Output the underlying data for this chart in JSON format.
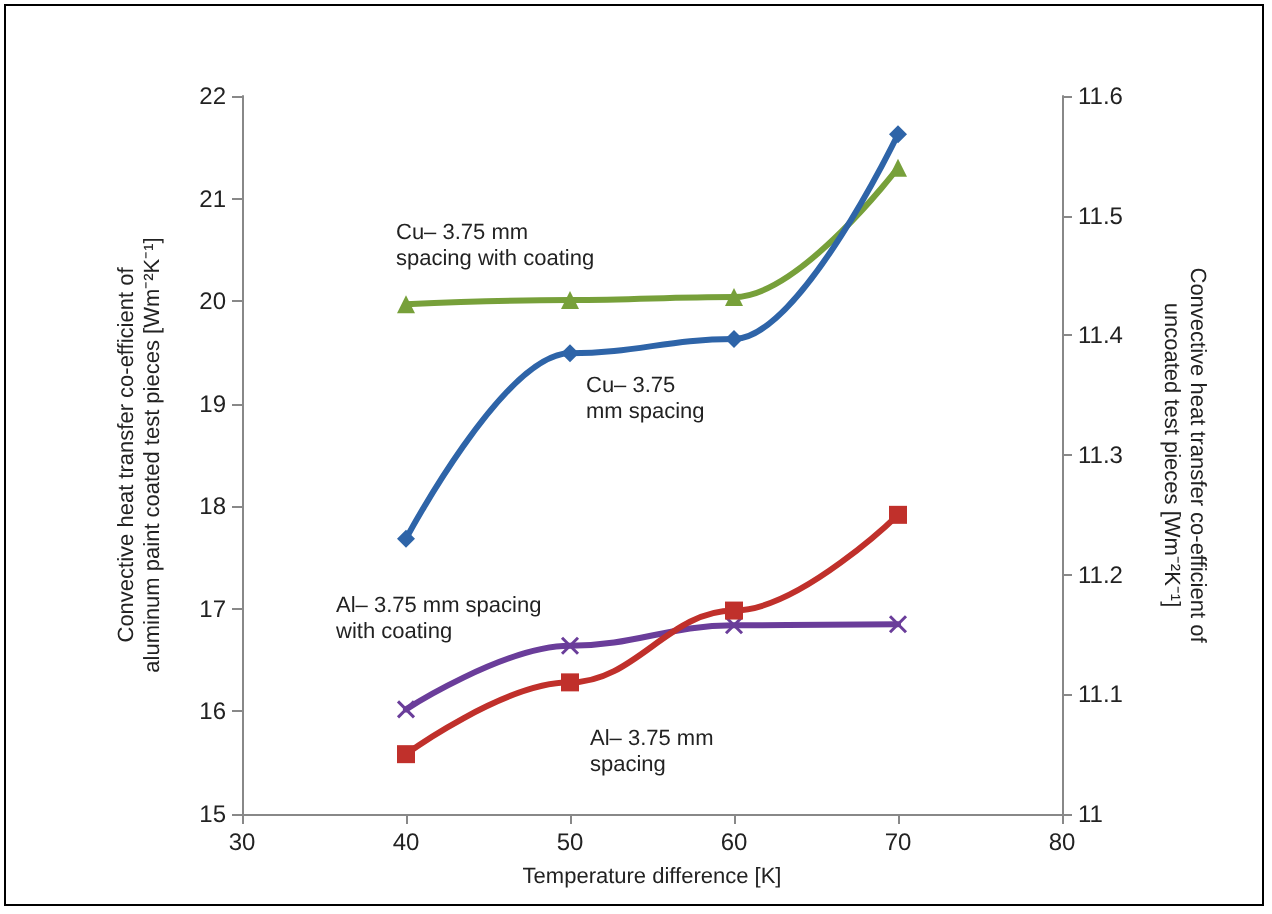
{
  "chart_data": {
    "type": "line",
    "xlabel": "Temperature difference [K]",
    "ylabel": "Convective heat transfer co-efficient of aluminum paint coated test pieces [Wm⁻²K⁻¹]",
    "y2label": "Convective heat transfer co-efficient of uncoated test pieces [Wm⁻²K⁻¹]",
    "x": [
      40,
      50,
      60,
      70
    ],
    "series": [
      {
        "name": "Cu– 3.75 mm spacing with coating",
        "color": "#77a03a",
        "marker": "triangle",
        "values": [
          19.97,
          20.01,
          20.04,
          21.3
        ]
      },
      {
        "name": "Cu– 3.75 mm spacing",
        "color": "#2e64a8",
        "marker": "diamond",
        "axis": "y2",
        "values": [
          11.23,
          11.385,
          11.397,
          11.568
        ]
      },
      {
        "name": "Al– 3.75 mm spacing with coating",
        "color": "#6a3d9a",
        "marker": "cross",
        "values": [
          16.02,
          16.64,
          16.84,
          16.85
        ]
      },
      {
        "name": "Al– 3.75 mm spacing",
        "color": "#c0302b",
        "marker": "square",
        "axis": "y2",
        "values": [
          11.05,
          11.11,
          11.17,
          11.25
        ]
      }
    ],
    "xlim": [
      30,
      80
    ],
    "xticks": [
      30,
      40,
      50,
      60,
      70,
      80
    ],
    "ylim": [
      15,
      22
    ],
    "yticks": [
      15,
      16,
      17,
      18,
      19,
      20,
      21,
      22
    ],
    "y2lim": [
      11,
      11.6
    ],
    "y2ticks": [
      11,
      11.1,
      11.2,
      11.3,
      11.4,
      11.5,
      11.6
    ],
    "grid": false
  }
}
